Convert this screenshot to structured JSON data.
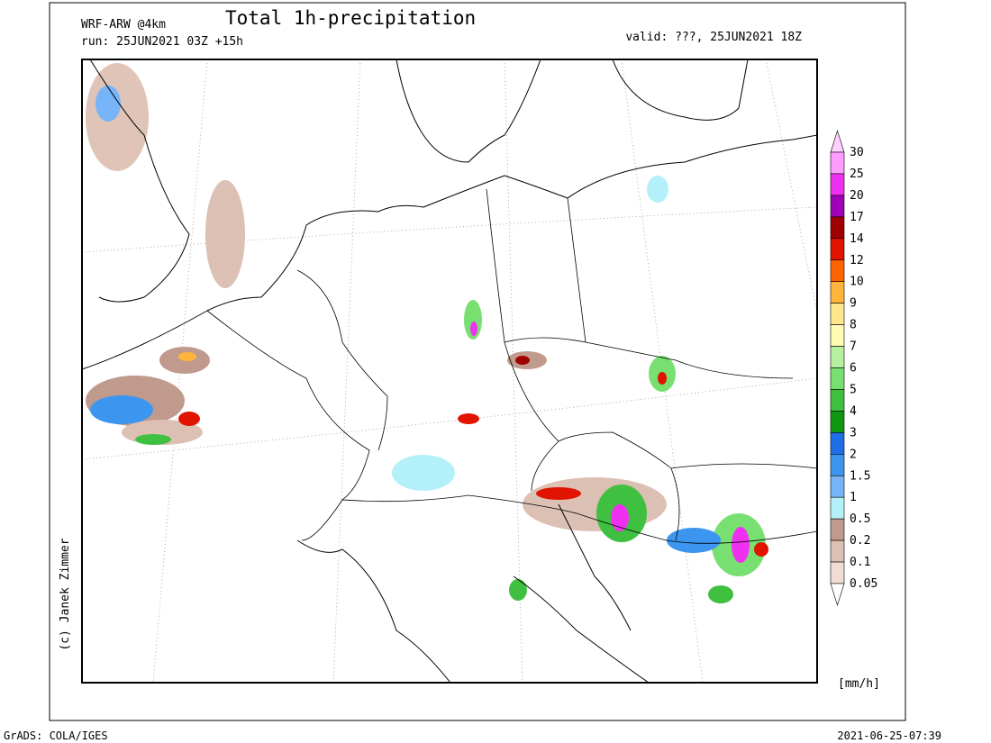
{
  "header": {
    "model": "WRF-ARW @4km",
    "title": "Total 1h-precipitation",
    "run": "run: 25JUN2021 03Z +15h",
    "valid": "valid: ???, 25JUN2021 18Z"
  },
  "legend": {
    "levels": [
      30,
      25,
      20,
      17,
      14,
      12,
      10,
      9,
      8,
      7,
      6,
      5,
      4,
      3,
      2,
      1.5,
      1,
      0.5,
      0.2,
      0.1,
      0.05
    ],
    "colors": [
      "#ffd0ff",
      "#ff9cff",
      "#f030f0",
      "#a000b8",
      "#a00000",
      "#e01400",
      "#ff6400",
      "#ffb43c",
      "#ffe68c",
      "#fffab4",
      "#b4f0a0",
      "#78e070",
      "#40c040",
      "#109610",
      "#1e6ee6",
      "#3c96f0",
      "#78b4f8",
      "#b4f0fa",
      "#c09a8c",
      "#dcc0b4",
      "#f0dcd2",
      "#ffffff"
    ],
    "unit": "[mm/h]"
  },
  "credit": "(c) Janek Zimmer",
  "footer": {
    "left": "GrADS: COLA/IGES",
    "right": "2021-06-25-07:39"
  }
}
